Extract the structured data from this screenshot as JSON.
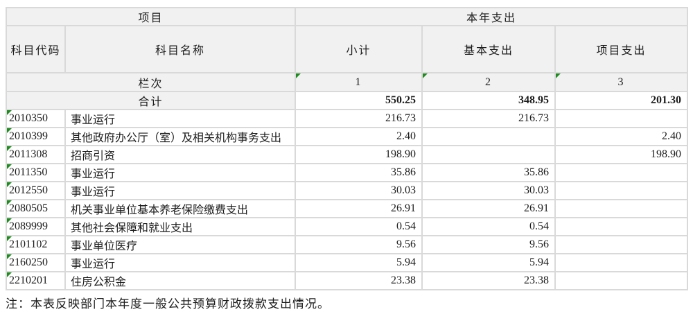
{
  "colors": {
    "header_bg": "#f1f1f1",
    "border": "#d9d9d9",
    "triangle_green": "#1e8c1e",
    "text": "#1c1c1c"
  },
  "table": {
    "header": {
      "group_left": "项目",
      "group_right": "本年支出",
      "columns": [
        "科目代码",
        "科目名称",
        "小计",
        "基本支出",
        "项目支出"
      ]
    },
    "lane_row": {
      "label": "栏次",
      "numbers": [
        "1",
        "2",
        "3"
      ]
    },
    "total_row": {
      "label": "合计",
      "subtotal": "550.25",
      "basic": "348.95",
      "project": "201.30"
    },
    "rows": [
      {
        "code": "2010350",
        "name": "事业运行",
        "subtotal": "216.73",
        "basic": "216.73",
        "project": ""
      },
      {
        "code": "2010399",
        "name": "其他政府办公厅（室）及相关机构事务支出",
        "subtotal": "2.40",
        "basic": "",
        "project": "2.40"
      },
      {
        "code": "2011308",
        "name": "招商引资",
        "subtotal": "198.90",
        "basic": "",
        "project": "198.90"
      },
      {
        "code": "2011350",
        "name": "事业运行",
        "subtotal": "35.86",
        "basic": "35.86",
        "project": ""
      },
      {
        "code": "2012550",
        "name": "事业运行",
        "subtotal": "30.03",
        "basic": "30.03",
        "project": ""
      },
      {
        "code": "2080505",
        "name": "机关事业单位基本养老保险缴费支出",
        "subtotal": "26.91",
        "basic": "26.91",
        "project": ""
      },
      {
        "code": "2089999",
        "name": "其他社会保障和就业支出",
        "subtotal": "0.54",
        "basic": "0.54",
        "project": ""
      },
      {
        "code": "2101102",
        "name": "事业单位医疗",
        "subtotal": "9.56",
        "basic": "9.56",
        "project": ""
      },
      {
        "code": "2160250",
        "name": "事业运行",
        "subtotal": "5.94",
        "basic": "5.94",
        "project": ""
      },
      {
        "code": "2210201",
        "name": "住房公积金",
        "subtotal": "23.38",
        "basic": "23.38",
        "project": ""
      }
    ],
    "note": "注：本表反映部门本年度一般公共预算财政拨款支出情况。"
  }
}
